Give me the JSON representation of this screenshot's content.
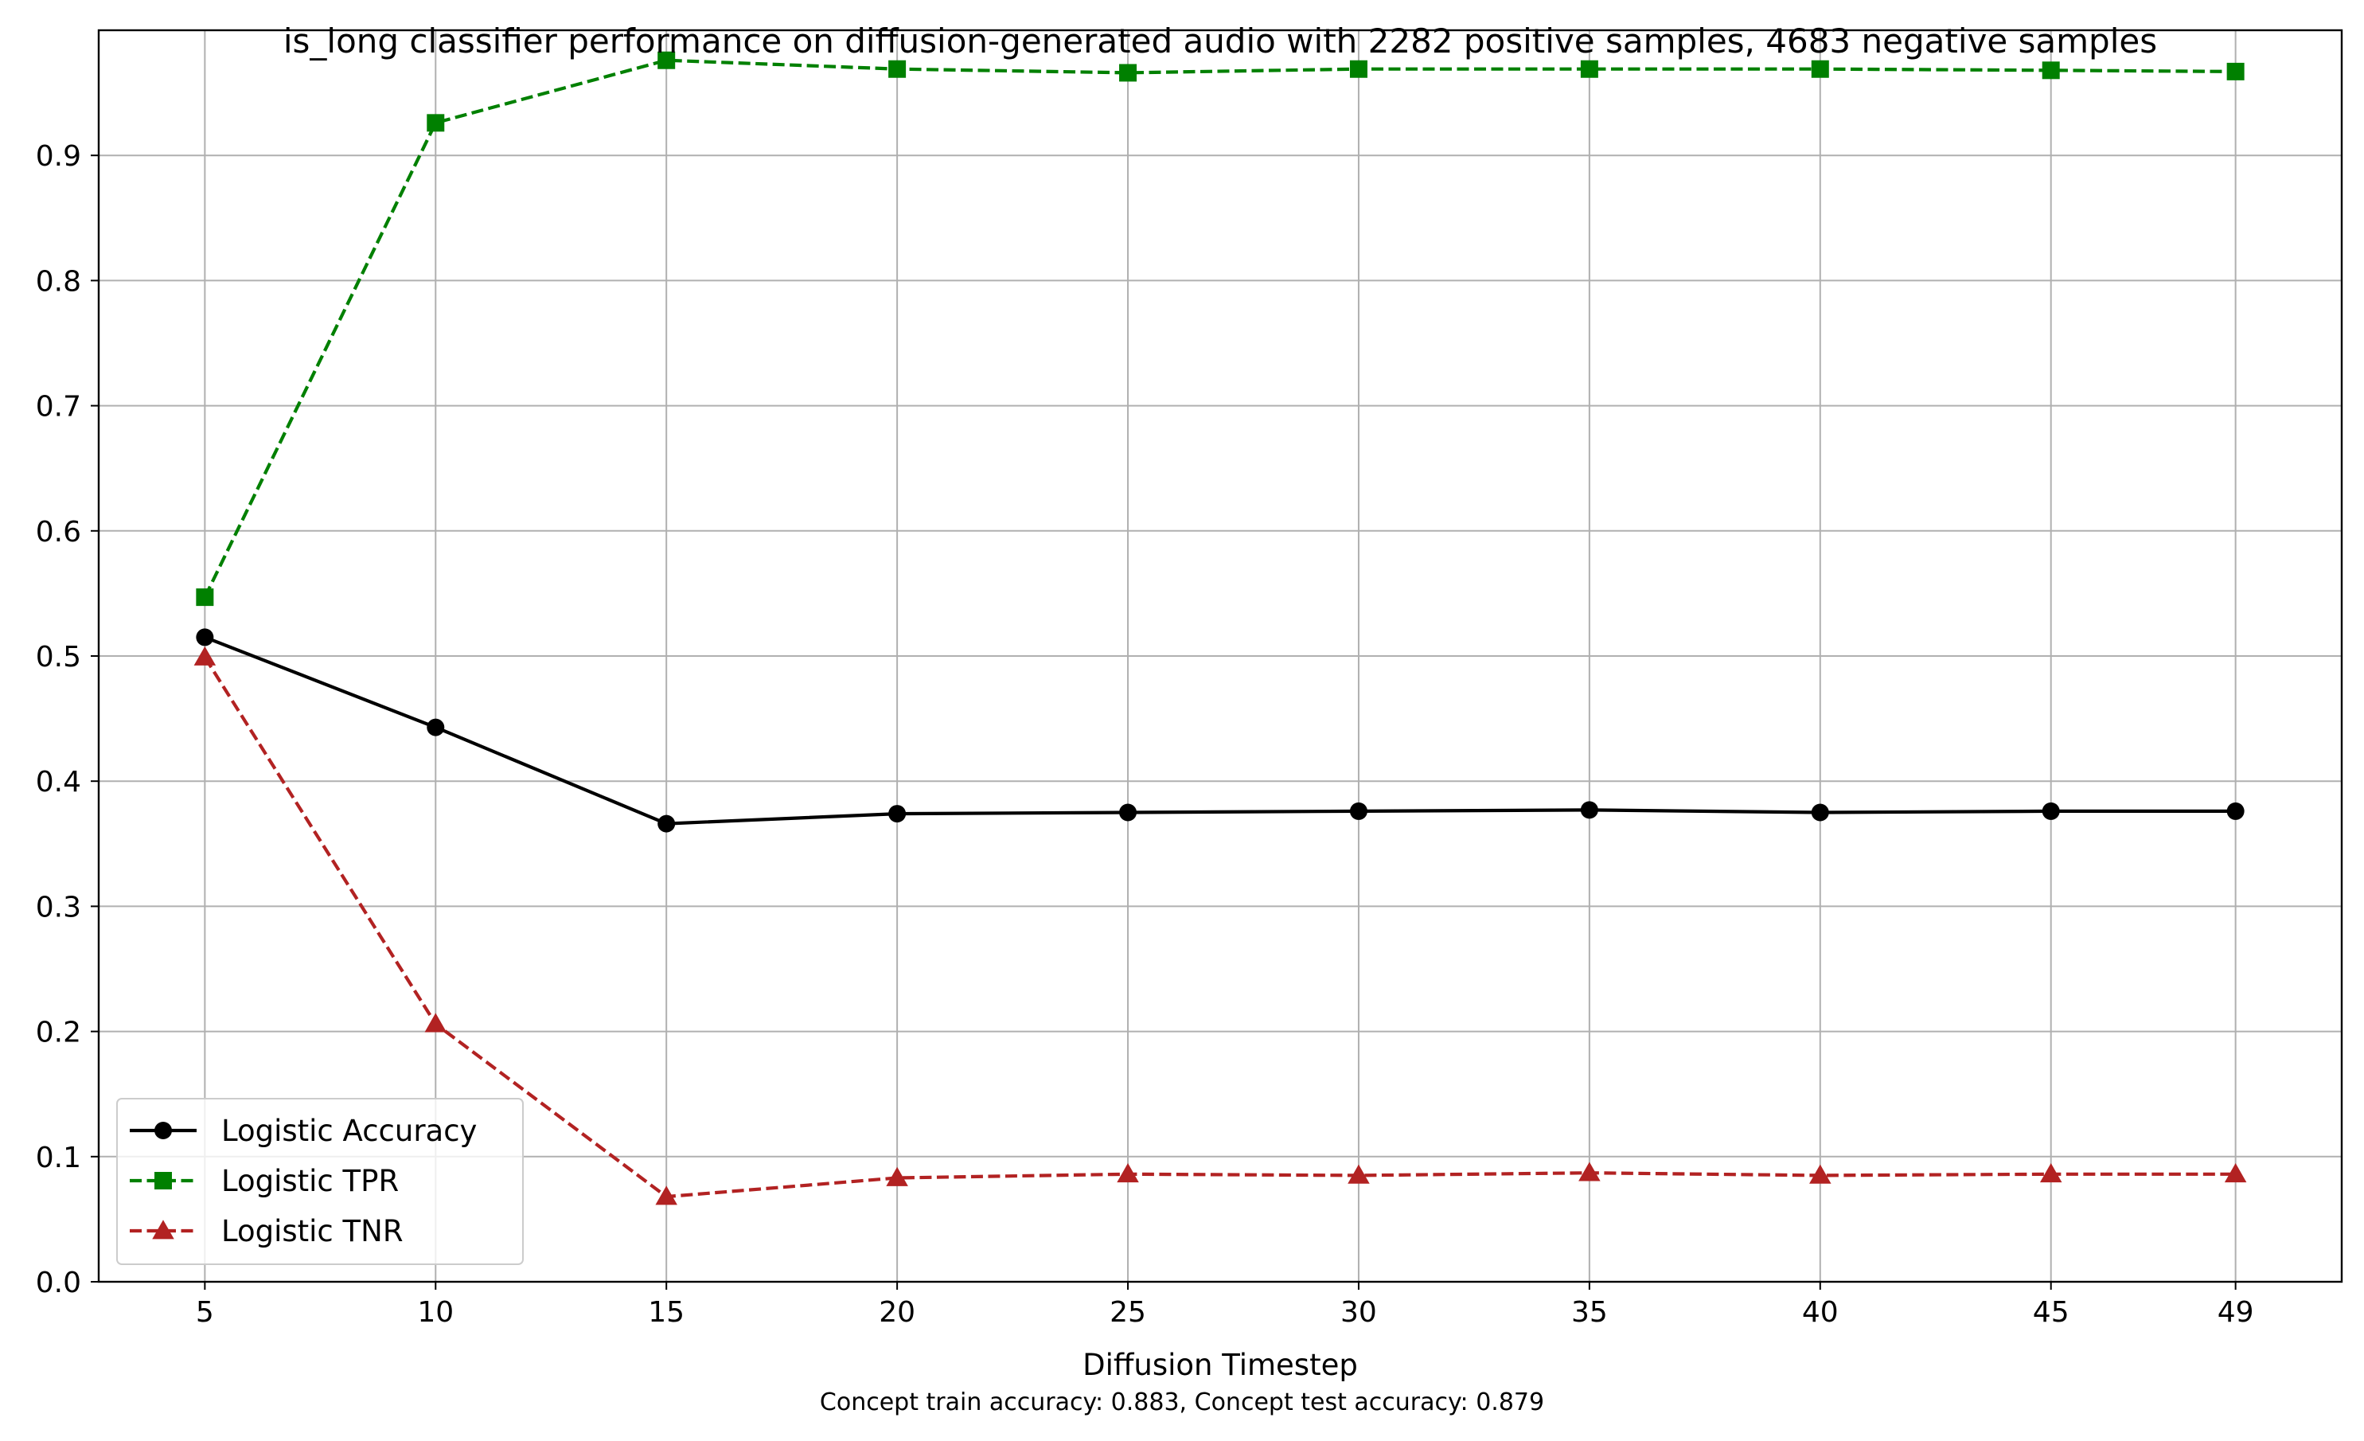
{
  "chart_data": {
    "type": "line",
    "title": "is_long classifier performance on diffusion-generated audio with 2282 positive samples, 4683 negative samples",
    "xlabel": "Diffusion Timestep",
    "ylabel": "",
    "subtitle": "Concept train accuracy: 0.883, Concept test accuracy: 0.879",
    "x": [
      5,
      10,
      15,
      20,
      25,
      30,
      35,
      40,
      45,
      49
    ],
    "x_tick_labels": [
      "5",
      "10",
      "15",
      "20",
      "25",
      "30",
      "35",
      "40",
      "45",
      "49"
    ],
    "y_ticks": [
      0.0,
      0.1,
      0.2,
      0.3,
      0.4,
      0.5,
      0.6,
      0.7,
      0.8,
      0.9
    ],
    "y_tick_labels": [
      "0.0",
      "0.1",
      "0.2",
      "0.3",
      "0.4",
      "0.5",
      "0.6",
      "0.7",
      "0.8",
      "0.9"
    ],
    "xlim": [
      2.7,
      51.3
    ],
    "ylim": [
      0.0,
      1.0
    ],
    "grid": true,
    "legend_position": "lower-left",
    "series": [
      {
        "name": "Logistic Accuracy",
        "color": "#000000",
        "line_style": "solid",
        "marker": "circle",
        "values": [
          0.515,
          0.443,
          0.366,
          0.374,
          0.375,
          0.376,
          0.377,
          0.375,
          0.376,
          0.376
        ]
      },
      {
        "name": "Logistic TPR",
        "color": "#008000",
        "line_style": "dashed",
        "marker": "square",
        "values": [
          0.547,
          0.926,
          0.976,
          0.969,
          0.966,
          0.969,
          0.969,
          0.969,
          0.968,
          0.967
        ]
      },
      {
        "name": "Logistic TNR",
        "color": "#b22222",
        "line_style": "dashed",
        "marker": "triangle",
        "values": [
          0.499,
          0.206,
          0.068,
          0.083,
          0.086,
          0.085,
          0.087,
          0.085,
          0.086,
          0.086
        ]
      }
    ]
  }
}
